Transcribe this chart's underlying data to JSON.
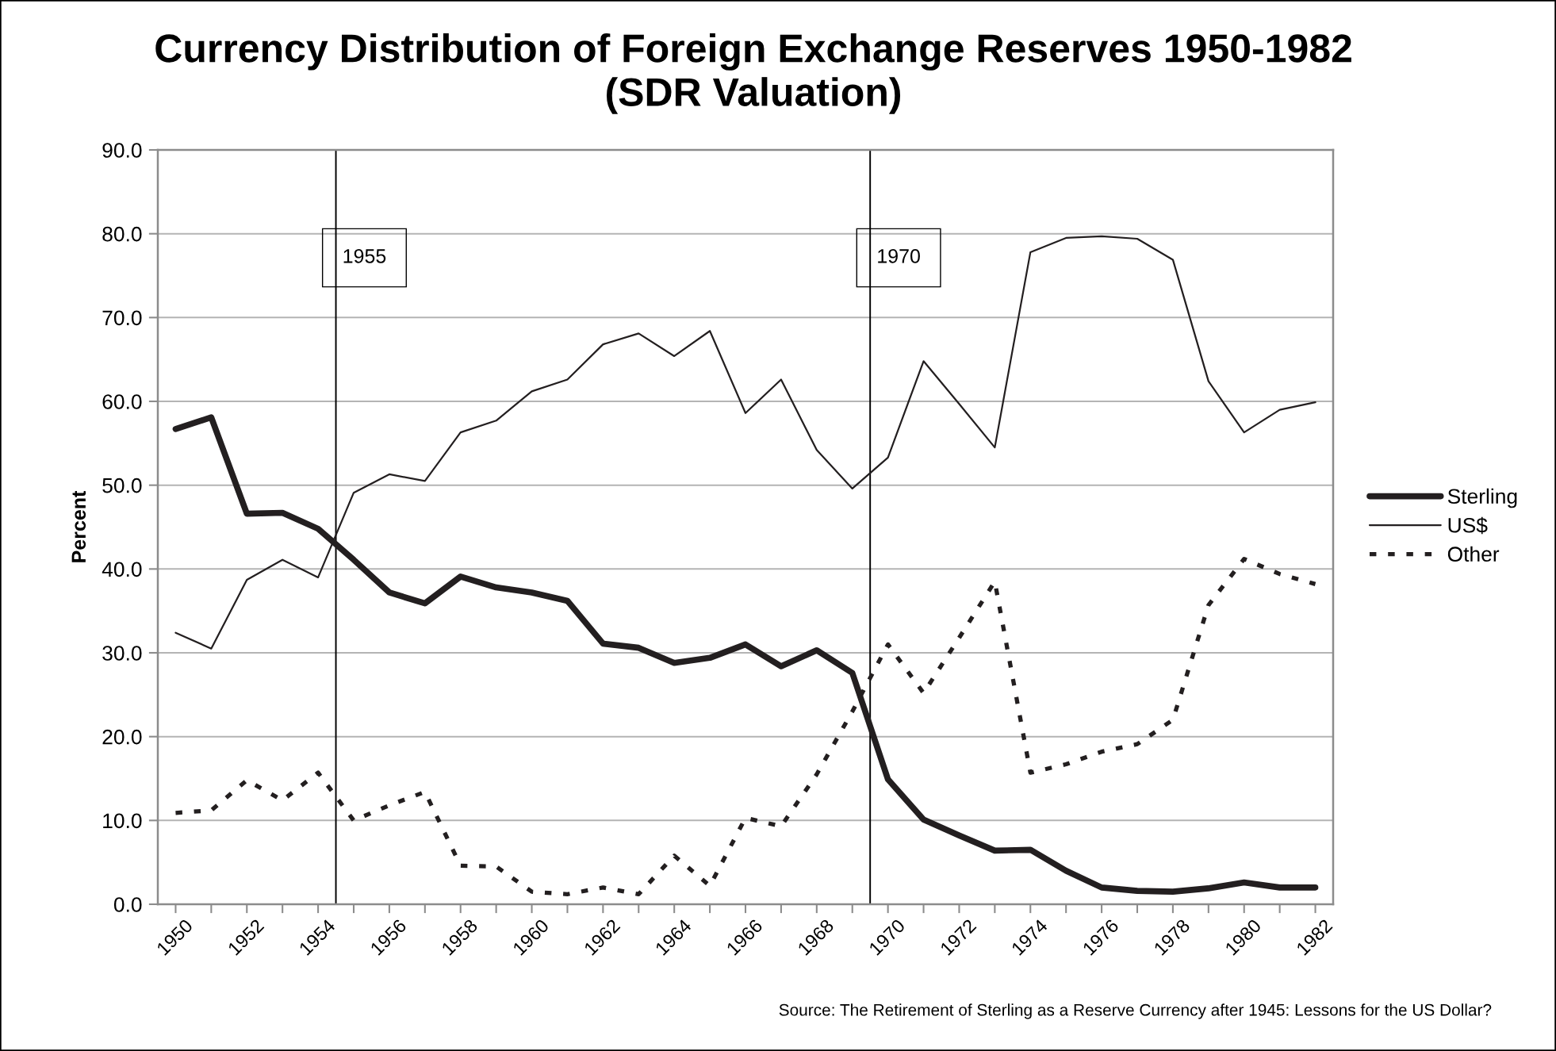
{
  "chart_data": {
    "type": "line",
    "title": "Currency Distribution of Foreign Exchange Reserves 1950-1982\n(SDR Valuation)",
    "ylabel": "Percent",
    "x": [
      1950,
      1951,
      1952,
      1953,
      1954,
      1955,
      1956,
      1957,
      1958,
      1959,
      1960,
      1961,
      1962,
      1963,
      1964,
      1965,
      1966,
      1967,
      1968,
      1969,
      1970,
      1971,
      1972,
      1973,
      1974,
      1975,
      1976,
      1977,
      1978,
      1979,
      1980,
      1981,
      1982
    ],
    "series": [
      {
        "name": "Sterling",
        "color": "#231f20",
        "line_style": "solid",
        "values": [
          56.7,
          58.1,
          46.6,
          46.7,
          44.8,
          41.1,
          37.2,
          35.9,
          39.1,
          37.8,
          37.2,
          36.2,
          31.1,
          30.6,
          28.8,
          29.4,
          31.0,
          28.4,
          30.3,
          27.6,
          14.9,
          10.1,
          8.2,
          6.4,
          6.5,
          4.0,
          2.0,
          1.6,
          1.5,
          1.9,
          2.6,
          2.0,
          2.0
        ]
      },
      {
        "name": "US$",
        "color": "#231f20",
        "line_style": "solid",
        "values": [
          32.4,
          30.5,
          38.7,
          41.1,
          39.0,
          49.1,
          51.3,
          50.5,
          56.3,
          57.7,
          61.2,
          62.6,
          66.8,
          68.1,
          65.4,
          68.4,
          58.6,
          62.6,
          54.2,
          49.6,
          53.3,
          64.8,
          59.7,
          54.5,
          77.8,
          79.5,
          79.7,
          79.4,
          76.9,
          62.4,
          56.3,
          59.0,
          59.9
        ]
      },
      {
        "name": "Other",
        "color": "#231f20",
        "line_style": "dotted",
        "values": [
          10.9,
          11.2,
          14.8,
          12.4,
          15.7,
          10.0,
          11.8,
          13.4,
          4.6,
          4.5,
          1.5,
          1.2,
          2.0,
          1.2,
          5.8,
          2.2,
          10.3,
          9.3,
          15.5,
          23.0,
          31.0,
          25.2,
          31.8,
          38.5,
          15.7,
          16.7,
          18.2,
          19.1,
          22.0,
          35.7,
          41.2,
          39.4,
          38.2
        ]
      }
    ],
    "xlim": [
      1949.5,
      1982.5
    ],
    "xticks": [
      1950,
      {
        "value": 1951,
        "label": null
      },
      1952,
      {
        "value": 1953,
        "label": null
      },
      1954,
      {
        "value": 1955,
        "label": null
      },
      1956,
      {
        "value": 1957,
        "label": null
      },
      1958,
      {
        "value": 1959,
        "label": null
      },
      1960,
      {
        "value": 1961,
        "label": null
      },
      1962,
      {
        "value": 1963,
        "label": null
      },
      1964,
      {
        "value": 1965,
        "label": null
      },
      1966,
      {
        "value": 1967,
        "label": null
      },
      1968,
      {
        "value": 1969,
        "label": null
      },
      1970,
      {
        "value": 1971,
        "label": null
      },
      1972,
      {
        "value": 1973,
        "label": null
      },
      1974,
      {
        "value": 1975,
        "label": null
      },
      1976,
      {
        "value": 1977,
        "label": null
      },
      1978,
      {
        "value": 1979,
        "label": null
      },
      1980,
      {
        "value": 1981,
        "label": null
      },
      1982
    ],
    "ylim": [
      0,
      90
    ],
    "yticks": [
      {
        "value": 0,
        "label": "0.0"
      },
      {
        "value": 10,
        "label": "10.0"
      },
      {
        "value": 20,
        "label": "20.0"
      },
      {
        "value": 30,
        "label": "30.0"
      },
      {
        "value": 40,
        "label": "40.0"
      },
      {
        "value": 50,
        "label": "50.0"
      },
      {
        "value": 60,
        "label": "60.0"
      },
      {
        "value": 70,
        "label": "70.0"
      },
      {
        "value": 80,
        "label": "80.0"
      },
      {
        "value": 90,
        "label": "90.0"
      }
    ],
    "ref_lines": [
      {
        "axis": "x",
        "value": 1954.5,
        "label": "1955",
        "color": "#000000"
      },
      {
        "axis": "x",
        "value": 1969.5,
        "label": "1970",
        "color": "#000000"
      }
    ],
    "grid": "y",
    "legend": "right",
    "annotations": [
      "Source: The Retirement of Sterling as a Reserve Currency after 1945: Lessons for the US Dollar?"
    ]
  }
}
